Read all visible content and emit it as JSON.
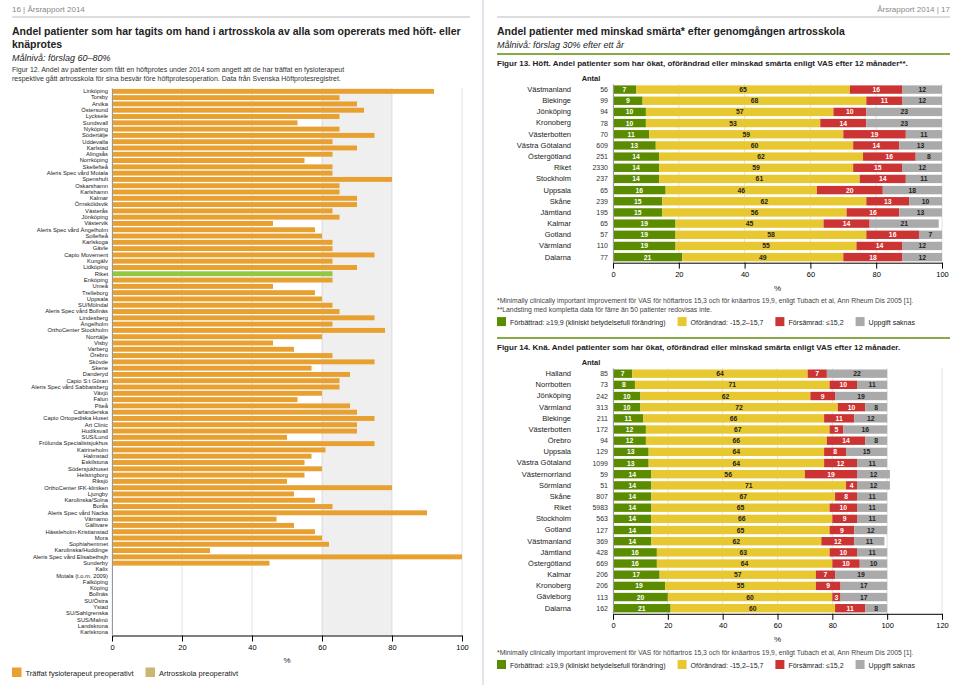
{
  "chart_data": [
    {
      "type": "bar",
      "orientation": "horizontal",
      "stacked": true,
      "page": "16 | Årsrapport 2014",
      "title": "Andel patienter som har tagits om hand i artrosskola av alla som opererats med höft- eller knäprotes",
      "subtitle": "Målnivå: förslag 60–80%",
      "caption": "Figur 12. Andel av patienter som fått en höftprotes under 2014 som angett att de har träffat en fysioterapeut\nrespektive gått artrosskola för sina besvär före höftprotesoperation. Data från Svenska Höftprotesregistret.",
      "categories": [
        "Karlskrona",
        "Landskrona",
        "SUS/Malmö",
        "SU/Sahlgrenska",
        "Ystad",
        "SU/Östra",
        "Bollnäs",
        "Köping",
        "Falköping",
        "Motala (t.o.m. 2009)",
        "Kalix",
        "Sunderby",
        "Aleris Spec vård Elisabethsjh",
        "Karolinska/Huddinge",
        "Sophiahemmet",
        "Mora",
        "Hässleholm-Kristianstad",
        "Gällivare",
        "Värnamo",
        "Aleris Spec vård Nacka",
        "Borås",
        "Karolinska/Solna",
        "Ljungby",
        "OrthoCenter IFK-kliniken",
        "Riksjö",
        "Helsingborg",
        "Södersjukhuset",
        "Eskilstuna",
        "Halmstad",
        "Katrineholm",
        "Frölunda Specialistsjukhus",
        "SUS/Lund",
        "Hudiksvall",
        "Art Clinic",
        "Capio Ortopediska Huset",
        "Carlanderska",
        "Piteå",
        "Falun",
        "Växjö",
        "Aleris Spec vård Sabbatsberg",
        "Capio S:t Göran",
        "Danderyd",
        "Skene",
        "Skövde",
        "Örebro",
        "Varberg",
        "Visby",
        "Norrtälje",
        "OrthoCenter Stockholm",
        "Ängelholm",
        "Lindesberg",
        "Aleris Spec vård Bollnäs",
        "SU/Mölndal",
        "Uppsala",
        "Trelleborg",
        "Umeå",
        "Enköping",
        "Riket",
        "Lidköping",
        "Kungälv",
        "Capio Movement",
        "Gävle",
        "Karlskoga",
        "Sollefteå",
        "Aleris Spec vård Ängelholm",
        "Västervik",
        "Jönköping",
        "Västerås",
        "Örnsköldsvik",
        "Kalmar",
        "Karlshamn",
        "Oskarshamn",
        "Spenshult",
        "Aleris Spec vård Motala",
        "Skellefteå",
        "Norrköping",
        "Alingsås",
        "Karlstad",
        "Uddevalla",
        "Södertälje",
        "Nyköping",
        "Sundsvall",
        "Lycksele",
        "Östersund",
        "Arvika",
        "Torsby",
        "Linköping"
      ],
      "series": [
        {
          "name": "Träffat fysioterapeut preoperativt",
          "color": "#E8A030",
          "colors": [
            "#E8A030",
            "#E8A030",
            "#E8A030",
            "#E8A030",
            "#E8A030",
            "#E8A030",
            "#E8A030",
            "#E8A030",
            "#E8A030",
            "#E8A030",
            "#E8A030",
            "#E8A030",
            "#E8A030",
            "#E8A030",
            "#E8A030",
            "#E8A030",
            "#E8A030",
            "#E8A030",
            "#E8A030",
            "#E8A030",
            "#E8A030",
            "#E8A030",
            "#E8A030",
            "#E8A030",
            "#E8A030",
            "#E8A030",
            "#E8A030",
            "#E8A030",
            "#E8A030",
            "#E8A030",
            "#E8A030",
            "#E8A030",
            "#E8A030",
            "#E8A030",
            "#E8A030",
            "#E8A030",
            "#E8A030",
            "#E8A030",
            "#E8A030",
            "#E8A030",
            "#E8A030",
            "#E8A030",
            "#E8A030",
            "#E8A030",
            "#E8A030",
            "#E8A030",
            "#E8A030",
            "#E8A030",
            "#E8A030",
            "#E8A030",
            "#E8A030",
            "#E8A030",
            "#E8A030",
            "#E8A030",
            "#E8A030",
            "#E8A030",
            "#E8A030",
            "#90C840",
            "#E8A030",
            "#E8A030",
            "#E8A030",
            "#E8A030",
            "#E8A030",
            "#E8A030",
            "#E8A030",
            "#E8A030",
            "#E8A030",
            "#E8A030",
            "#E8A030",
            "#E8A030",
            "#E8A030",
            "#E8A030",
            "#E8A030",
            "#E8A030",
            "#E8A030",
            "#E8A030",
            "#E8A030",
            "#E8A030",
            "#E8A030",
            "#E8A030",
            "#E8A030",
            "#E8A030",
            "#E8A030",
            "#E8A030",
            "#E8A030",
            "#E8A030",
            "#E8A030"
          ],
          "values": [
            0,
            0,
            0,
            0,
            0,
            0,
            0,
            0,
            0,
            0,
            0,
            45,
            100,
            28,
            62,
            60,
            58,
            52,
            47,
            90,
            63,
            58,
            52,
            80,
            50,
            55,
            60,
            55,
            57,
            61,
            75,
            50,
            70,
            70,
            75,
            70,
            68,
            53,
            60,
            65,
            65,
            68,
            57,
            75,
            63,
            52,
            46,
            60,
            78,
            63,
            75,
            65,
            63,
            60,
            58,
            46,
            63,
            63,
            70,
            63,
            75,
            63,
            63,
            60,
            58,
            46,
            65,
            63,
            70,
            70,
            65,
            65,
            80,
            63,
            63,
            55,
            63,
            70,
            63,
            75,
            65,
            53,
            65,
            72,
            70,
            65,
            92
          ]
        },
        {
          "name": "Artrosskola preoperativt",
          "color": "#C8B870",
          "values": [
            0,
            0,
            0,
            0,
            0,
            0,
            0,
            0,
            0,
            0,
            0,
            0,
            0,
            0,
            0,
            0,
            0,
            0,
            0,
            0,
            0,
            0,
            0,
            0,
            0,
            0,
            0,
            0,
            0,
            0,
            0,
            0,
            0,
            0,
            0,
            0,
            0,
            0,
            0,
            0,
            0,
            0,
            0,
            0,
            0,
            0,
            0,
            0,
            0,
            0,
            0,
            0,
            0,
            0,
            0,
            0,
            0,
            0,
            0,
            0,
            0,
            0,
            0,
            0,
            0,
            0,
            0,
            0,
            0,
            0,
            0,
            0,
            0,
            0,
            0,
            0,
            0,
            0,
            0,
            0,
            0,
            0,
            0,
            0,
            0,
            0,
            0
          ]
        }
      ],
      "goal_range": [
        60,
        80
      ],
      "xlabel": "%",
      "xlim": [
        0,
        100
      ],
      "xticks": [
        0,
        20,
        40,
        60,
        80,
        100
      ],
      "grid": true,
      "legend": "bottom"
    },
    {
      "type": "bar",
      "orientation": "horizontal",
      "stacked": true,
      "data_labels": true,
      "page": "Årsrapport 2014 | 17",
      "title": "Andel patienter med minskad smärta* efter genomgången artrosskola",
      "subtitle": "Målnivå: förslag 30% efter ett år",
      "caption": "Figur 13. Höft. Andel patienter som har ökat, oförändrad eller minskad smärta enligt VAS efter 12 månader**.",
      "footnote": "*Minimally clinically important improvement för VAS för höftartros 15,3 och för knäartros 19,9, enligt Tubach et al, Ann Rheum Dis 2005 [1].\n**Landsting med kompletta data för färre än 50 patienter redovisas inte.",
      "categories": [
        "Dalarna",
        "Värmland",
        "Gotland",
        "Kalmar",
        "Jämtland",
        "Skåne",
        "Uppsala",
        "Stockholm",
        "Riket",
        "Östergötland",
        "Västra Götaland",
        "Västerbotten",
        "Kronoberg",
        "Jönköping",
        "Blekinge",
        "Västmanland"
      ],
      "n_header": "Antal",
      "n": [
        77,
        110,
        57,
        65,
        195,
        239,
        65,
        237,
        2330,
        251,
        609,
        70,
        78,
        94,
        99,
        56
      ],
      "series": [
        {
          "name": "Förbättrad: ≥19,9 (kliniskt betydelsefull förändring)",
          "color": "#5B8C00",
          "values": [
            21,
            19,
            19,
            19,
            15,
            15,
            16,
            14,
            14,
            14,
            13,
            11,
            10,
            10,
            9,
            7
          ]
        },
        {
          "name": "Oförändrad: -15,2–15,7",
          "color": "#E8C830",
          "values": [
            49,
            55,
            58,
            45,
            56,
            62,
            46,
            61,
            59,
            62,
            60,
            59,
            53,
            57,
            68,
            65
          ]
        },
        {
          "name": "Försämrad: ≤15,2",
          "color": "#CC3333",
          "values": [
            18,
            14,
            16,
            14,
            16,
            13,
            20,
            14,
            15,
            16,
            14,
            19,
            14,
            10,
            11,
            16
          ]
        },
        {
          "name": "Uppgift saknas",
          "color": "#AAAAAA",
          "values": [
            12,
            12,
            7,
            21,
            13,
            10,
            18,
            11,
            12,
            8,
            13,
            11,
            23,
            23,
            12,
            12
          ]
        }
      ],
      "xlabel": "%",
      "xlim": [
        0,
        100
      ],
      "xticks": [
        0,
        20,
        40,
        60,
        80,
        100
      ],
      "grid": true,
      "legend": "bottom"
    },
    {
      "type": "bar",
      "orientation": "horizontal",
      "stacked": true,
      "data_labels": true,
      "caption": "Figur 14. Knä. Andel patienter som har ökat, oförändrad eller minskad smärta enligt VAS efter 12 månader.",
      "footnote": "*Minimally clinically important improvement för VAS för höftartros 15,3 och för knäartros 19,9, enligt Tubach et al, Ann Rheum Dis 2005 [1].",
      "categories": [
        "Dalarna",
        "Gävleborg",
        "Kronoberg",
        "Kalmar",
        "Östergötland",
        "Jämtland",
        "Västmanland",
        "Gotland",
        "Stockholm",
        "Riket",
        "Skåne",
        "Sörmland",
        "Västernorrland",
        "Västra Götaland",
        "Uppsala",
        "Örebro",
        "Västerbotten",
        "Blekinge",
        "Värmland",
        "Jönköping",
        "Norrbotten",
        "Halland"
      ],
      "n_header": "Antal",
      "n": [
        162,
        113,
        206,
        206,
        669,
        428,
        369,
        127,
        563,
        5983,
        807,
        51,
        59,
        1099,
        129,
        94,
        172,
        211,
        313,
        242,
        73,
        85
      ],
      "series": [
        {
          "name": "Förbättrad: ≥19,9 (kliniskt betydelsefull förändring)",
          "color": "#5B8C00",
          "values": [
            21,
            20,
            19,
            17,
            16,
            16,
            14,
            14,
            14,
            14,
            14,
            14,
            14,
            13,
            13,
            12,
            12,
            11,
            10,
            10,
            8,
            7
          ]
        },
        {
          "name": "Oförändrad: -15,2–15,7",
          "color": "#E8C830",
          "values": [
            60,
            60,
            55,
            57,
            64,
            63,
            62,
            65,
            66,
            65,
            67,
            71,
            56,
            64,
            64,
            66,
            67,
            66,
            72,
            62,
            71,
            64
          ]
        },
        {
          "name": "Försämrad: ≤15,2",
          "color": "#CC3333",
          "values": [
            11,
            3,
            9,
            7,
            10,
            10,
            12,
            9,
            9,
            10,
            8,
            4,
            19,
            12,
            8,
            14,
            5,
            11,
            10,
            9,
            10,
            7
          ]
        },
        {
          "name": "Uppgift saknas",
          "color": "#AAAAAA",
          "values": [
            8,
            17,
            17,
            19,
            10,
            11,
            11,
            12,
            11,
            11,
            11,
            12,
            12,
            11,
            15,
            8,
            16,
            12,
            8,
            19,
            11,
            22
          ]
        }
      ],
      "xlabel": "%",
      "xlim": [
        0,
        120
      ],
      "xticks": [
        0,
        20,
        40,
        60,
        80,
        100,
        120
      ],
      "grid": true,
      "legend": "bottom"
    }
  ]
}
